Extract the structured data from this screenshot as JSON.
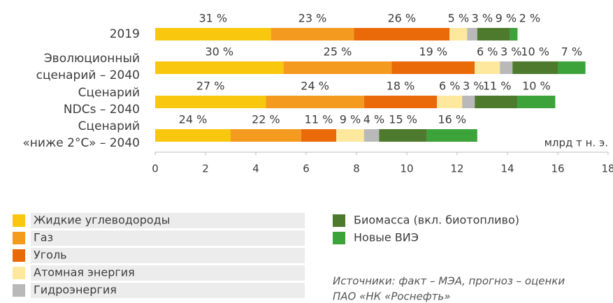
{
  "chart_data": {
    "type": "stacked-barh",
    "categories": [
      [
        "2019"
      ],
      [
        "Эволюционный",
        "сценарий – 2040"
      ],
      [
        "Сценарий",
        "NDCs – 2040"
      ],
      [
        "Сценарий",
        "«ниже 2°C» – 2040"
      ]
    ],
    "series": [
      {
        "name": "Жидкие углеводороды",
        "color": "#f9c80e",
        "values": [
          4.6,
          5.1,
          4.4,
          3.0
        ],
        "labels": [
          "31 %",
          "30 %",
          "27 %",
          "24 %"
        ]
      },
      {
        "name": "Газ",
        "color": "#f39a1f",
        "values": [
          3.3,
          4.3,
          3.9,
          2.8
        ],
        "labels": [
          "23 %",
          "25 %",
          "24 %",
          "22 %"
        ]
      },
      {
        "name": "Уголь",
        "color": "#ea6a0a",
        "values": [
          3.8,
          3.3,
          2.9,
          1.4
        ],
        "labels": [
          "26 %",
          "19 %",
          "18 %",
          "11 %"
        ]
      },
      {
        "name": "Атомная энергия",
        "color": "#fde89e",
        "values": [
          0.7,
          1.0,
          1.0,
          1.1
        ],
        "labels": [
          "5 %",
          "6 %",
          "6 %",
          "9 %"
        ]
      },
      {
        "name": "Гидроэнергия",
        "color": "#b9b9b9",
        "values": [
          0.4,
          0.5,
          0.5,
          0.6
        ],
        "labels": [
          "3 %",
          "3 %",
          "3 %",
          "4 %"
        ]
      },
      {
        "name": "Биомасса (вкл. биотопливо)",
        "color": "#4e7a2e",
        "values": [
          1.3,
          1.8,
          1.7,
          1.9
        ],
        "labels": [
          "9 %",
          "10 %",
          "11 %",
          "15 %"
        ]
      },
      {
        "name": "Новые ВИЭ",
        "color": "#3ba33a",
        "values": [
          0.3,
          1.1,
          1.5,
          2.0
        ],
        "labels": [
          "2 %",
          "7 %",
          "10 %",
          "16 %"
        ]
      }
    ],
    "xlabel": "млрд т н. э.",
    "xlim": [
      0,
      18
    ],
    "xticks": [
      0,
      2,
      4,
      6,
      8,
      10,
      12,
      14,
      16,
      18
    ],
    "source": [
      "Источники: факт – МЭА, прогноз – оценки",
      "ПАО «НК «Роснефть»"
    ]
  }
}
